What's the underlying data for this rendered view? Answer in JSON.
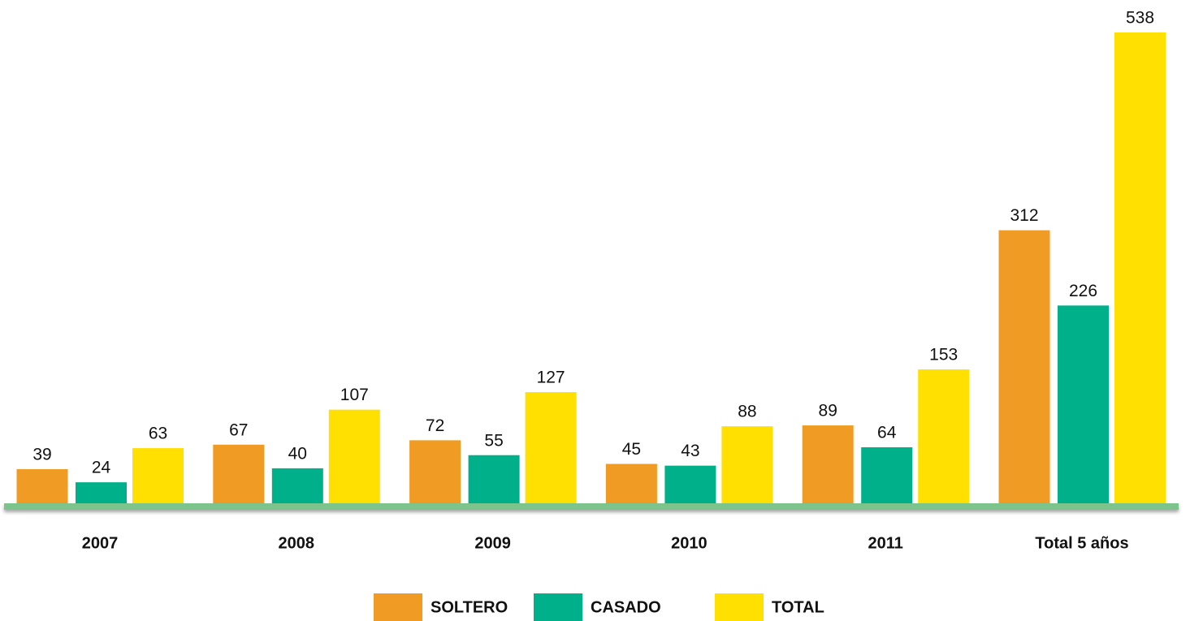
{
  "chart_data": {
    "type": "bar",
    "categories": [
      "2007",
      "2008",
      "2009",
      "2010",
      "2011",
      "Total 5 años"
    ],
    "series": [
      {
        "name": "SOLTERO",
        "color": "#f09c24",
        "values": [
          39,
          67,
          72,
          45,
          89,
          312
        ]
      },
      {
        "name": "CASADO",
        "color": "#00b08a",
        "values": [
          24,
          40,
          55,
          43,
          64,
          226
        ]
      },
      {
        "name": "TOTAL",
        "color": "#ffe000",
        "values": [
          63,
          107,
          127,
          88,
          153,
          538
        ]
      }
    ],
    "ylim": [
      0,
      538
    ]
  }
}
